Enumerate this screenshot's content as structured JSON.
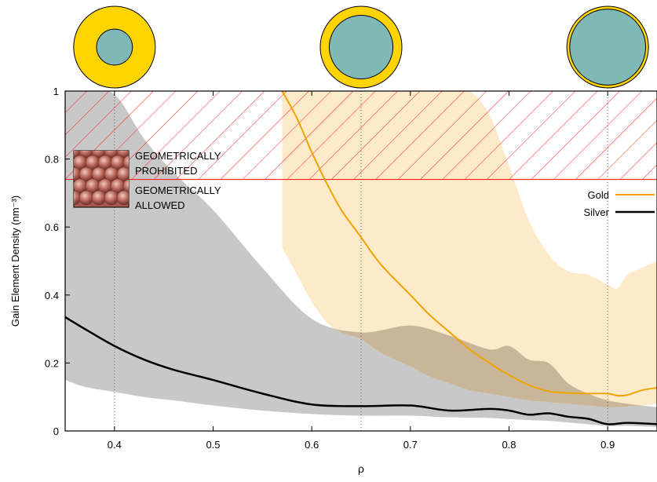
{
  "chart_data": {
    "type": "line",
    "xlabel": "ρ",
    "ylabel": "Gain Element Density (nm⁻³)",
    "xlim": [
      0.35,
      0.95
    ],
    "ylim": [
      0,
      1
    ],
    "x_ticks": [
      "0.4",
      "0.5",
      "0.6",
      "0.7",
      "0.8",
      "0.9"
    ],
    "x_tick_values": [
      0.4,
      0.5,
      0.6,
      0.7,
      0.8,
      0.9
    ],
    "y_ticks": [
      "0",
      "0.2",
      "0.4",
      "0.6",
      "0.8",
      "1"
    ],
    "y_tick_values": [
      0,
      0.2,
      0.4,
      0.6,
      0.8,
      1
    ],
    "reference_lines_x": [
      0.4,
      0.65,
      0.9
    ],
    "threshold_y": 0.74,
    "annotations": {
      "prohibited_line1": "GEOMETRICALLY",
      "prohibited_line2": "PROHIBITED",
      "allowed_line1": "GEOMETRICALLY",
      "allowed_line2": "ALLOWED"
    },
    "legend_position": "right, below threshold line",
    "colors": {
      "gold_line": "#f0a400",
      "gold_band": "#fde6bf",
      "silver_line": "#000000",
      "silver_band": "#c8c8c8",
      "overlap_band": "#c9b597",
      "hatch": "#ff2020",
      "particle_shell": "#ffd400",
      "particle_core": "#7fb8b5"
    },
    "particles": [
      {
        "rho": 0.4
      },
      {
        "rho": 0.65
      },
      {
        "rho": 0.9
      }
    ],
    "series": [
      {
        "name": "Gold",
        "x": [
          0.57,
          0.585,
          0.6,
          0.615,
          0.63,
          0.65,
          0.67,
          0.7,
          0.72,
          0.74,
          0.76,
          0.78,
          0.8,
          0.82,
          0.84,
          0.86,
          0.88,
          0.9,
          0.91,
          0.92,
          0.935,
          0.95
        ],
        "y": [
          1.0,
          0.92,
          0.82,
          0.73,
          0.65,
          0.57,
          0.49,
          0.4,
          0.34,
          0.29,
          0.24,
          0.2,
          0.165,
          0.135,
          0.117,
          0.112,
          0.11,
          0.11,
          0.104,
          0.106,
          0.12,
          0.127
        ],
        "band_upper": [
          1,
          1,
          1,
          1,
          1,
          1,
          1,
          1,
          1,
          1,
          1,
          0.93,
          0.78,
          0.62,
          0.52,
          0.47,
          0.46,
          0.43,
          0.42,
          0.46,
          0.48,
          0.5
        ],
        "band_lower": [
          0.54,
          0.46,
          0.38,
          0.32,
          0.29,
          0.27,
          0.23,
          0.19,
          0.16,
          0.14,
          0.12,
          0.11,
          0.1,
          0.09,
          0.085,
          0.08,
          0.075,
          0.07,
          0.07,
          0.072,
          0.075,
          0.08
        ]
      },
      {
        "name": "Silver",
        "x": [
          0.35,
          0.37,
          0.4,
          0.43,
          0.46,
          0.5,
          0.55,
          0.6,
          0.65,
          0.7,
          0.74,
          0.78,
          0.8,
          0.82,
          0.84,
          0.86,
          0.88,
          0.9,
          0.92,
          0.95
        ],
        "y": [
          0.335,
          0.3,
          0.25,
          0.21,
          0.18,
          0.15,
          0.11,
          0.078,
          0.073,
          0.075,
          0.06,
          0.065,
          0.06,
          0.048,
          0.052,
          0.042,
          0.036,
          0.02,
          0.024,
          0.02
        ],
        "band_upper": [
          1,
          1,
          0.99,
          0.86,
          0.76,
          0.65,
          0.48,
          0.33,
          0.29,
          0.31,
          0.28,
          0.24,
          0.25,
          0.21,
          0.2,
          0.14,
          0.11,
          0.09,
          0.08,
          0.07
        ],
        "band_lower": [
          0.15,
          0.13,
          0.115,
          0.1,
          0.09,
          0.075,
          0.06,
          0.05,
          0.045,
          0.045,
          0.04,
          0.038,
          0.035,
          0.032,
          0.03,
          0.025,
          0.02,
          0.015,
          0.015,
          0.012
        ]
      }
    ]
  }
}
